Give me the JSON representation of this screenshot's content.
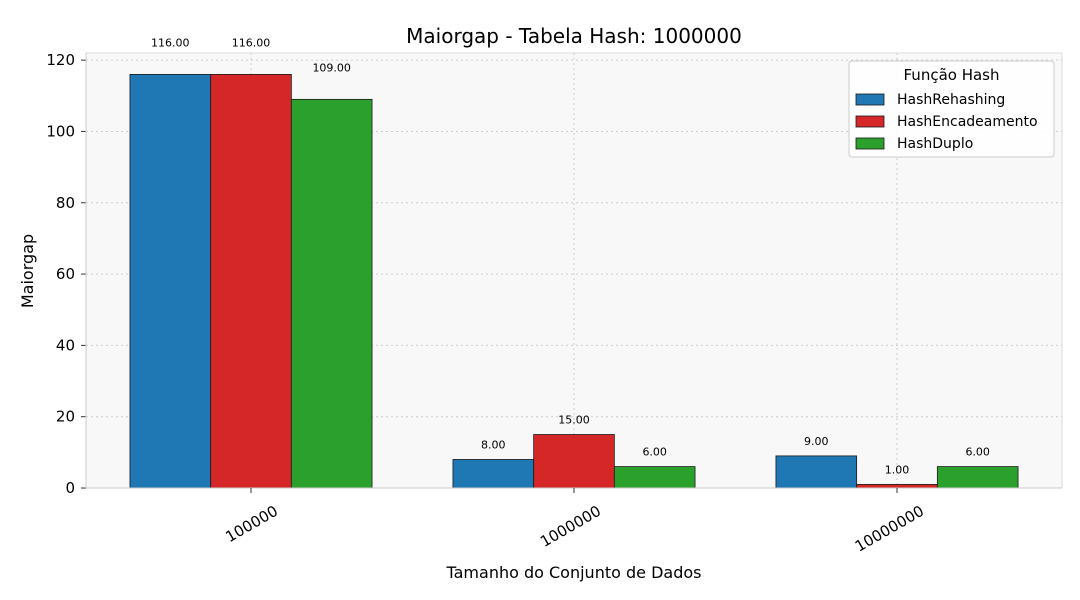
{
  "chart_data": {
    "type": "bar",
    "title": "Maiorgap - Tabela Hash: 1000000",
    "xlabel": "Tamanho do Conjunto de Dados",
    "ylabel": "Maiorgap",
    "categories": [
      "100000",
      "1000000",
      "10000000"
    ],
    "series": [
      {
        "name": "HashRehashing",
        "color": "#1f77b4",
        "values": [
          116,
          8,
          9
        ],
        "labels": [
          "116.00",
          "8.00",
          "9.00"
        ]
      },
      {
        "name": "HashEncadeamento",
        "color": "#d62728",
        "values": [
          116,
          15,
          1
        ],
        "labels": [
          "116.00",
          "15.00",
          "1.00"
        ]
      },
      {
        "name": "HashDuplo",
        "color": "#2ca02c",
        "values": [
          109,
          6,
          6
        ],
        "labels": [
          "109.00",
          "6.00",
          "6.00"
        ]
      }
    ],
    "ylim": [
      0,
      122
    ],
    "yticks": [
      "0",
      "20",
      "40",
      "60",
      "80",
      "100",
      "120"
    ],
    "legend": {
      "title": "Função Hash",
      "position": "top-right"
    },
    "grid": true,
    "x_tick_rotation": "30deg"
  }
}
